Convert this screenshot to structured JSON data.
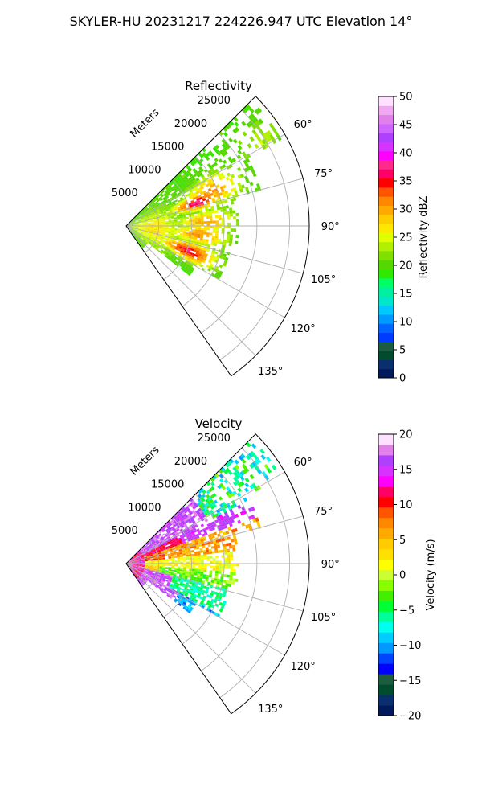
{
  "suptitle": "SKYLER-HU  20231217  224226.947 UTC Elevation 14°",
  "chart_data": [
    {
      "type": "heatmap",
      "projection": "polar-sector",
      "title": "Reflectivity",
      "radial_label": "Meters",
      "radial_ticks": [
        5000,
        10000,
        15000,
        20000,
        25000
      ],
      "rmax": 28000,
      "angle_range": [
        45,
        145
      ],
      "angle_ticks": [
        60,
        75,
        90,
        105,
        120,
        135
      ],
      "grid": true,
      "colorbar": {
        "label": "Reflectivity dBZ",
        "range": [
          0,
          50
        ],
        "ticks": [
          0,
          5,
          10,
          15,
          20,
          25,
          30,
          35,
          40,
          45,
          50
        ]
      },
      "blobs": [
        {
          "theta": 67,
          "r": 14000,
          "value": 31,
          "spread_deg": 6,
          "spread_r": 3000
        },
        {
          "theta": 71,
          "r": 11000,
          "value": 37,
          "spread_deg": 4,
          "spread_r": 2500
        },
        {
          "theta": 86,
          "r": 12000,
          "value": 30,
          "spread_deg": 5,
          "spread_r": 3000
        },
        {
          "theta": 96,
          "r": 11000,
          "value": 31,
          "spread_deg": 5,
          "spread_r": 3000
        },
        {
          "theta": 111,
          "r": 10000,
          "value": 36,
          "spread_deg": 5,
          "spread_r": 3000
        },
        {
          "theta": 57,
          "r": 24000,
          "value": 23,
          "spread_deg": 5,
          "spread_r": 3000
        },
        {
          "theta": 95,
          "r": 4000,
          "value": 27,
          "spread_deg": 25,
          "spread_r": 3000
        }
      ]
    },
    {
      "type": "heatmap",
      "projection": "polar-sector",
      "title": "Velocity",
      "radial_label": "Meters",
      "radial_ticks": [
        5000,
        10000,
        15000,
        20000,
        25000
      ],
      "rmax": 28000,
      "angle_range": [
        45,
        145
      ],
      "angle_ticks": [
        60,
        75,
        90,
        105,
        120,
        135
      ],
      "grid": true,
      "colorbar": {
        "label": "Velocity (m/s)",
        "range": [
          -20,
          20
        ],
        "ticks": [
          -20,
          -15,
          -10,
          -5,
          0,
          5,
          10,
          15,
          20
        ]
      },
      "zones": [
        {
          "from_deg": 45,
          "to_deg": 66,
          "value": 14,
          "note": "magenta/violet band upper"
        },
        {
          "from_deg": 66,
          "to_deg": 84,
          "value": 7,
          "note": "red/orange"
        },
        {
          "from_deg": 84,
          "to_deg": 97,
          "value": 0,
          "note": "yellow"
        },
        {
          "from_deg": 97,
          "to_deg": 145,
          "value": -8,
          "note": "green/cyan lower"
        }
      ]
    }
  ],
  "colors": {
    "reflectivity_scale": [
      "#001a5c",
      "#0a2f6e",
      "#004c2e",
      "#1c5c40",
      "#003cff",
      "#0066ff",
      "#0099ff",
      "#00c8ff",
      "#00e6c8",
      "#00f0a0",
      "#00ff66",
      "#30e800",
      "#55d800",
      "#80e000",
      "#b0f000",
      "#e0ff00",
      "#ffe800",
      "#ffcc00",
      "#ffaa00",
      "#ff8800",
      "#ff5500",
      "#ff0000",
      "#ff0066",
      "#ff2a8a",
      "#ff00ff",
      "#d633ff",
      "#b040ff",
      "#cc66ff",
      "#e080e8",
      "#f0a8f0",
      "#ffe0ff"
    ],
    "velocity_scale": [
      "#001a5c",
      "#0a2f6e",
      "#004c2e",
      "#1c5c40",
      "#0000ff",
      "#0044ff",
      "#0099ff",
      "#00ccff",
      "#00ffee",
      "#00ff99",
      "#00ff33",
      "#44ee00",
      "#88ff00",
      "#ccff33",
      "#ffff00",
      "#ffe000",
      "#ffcc00",
      "#ffaa00",
      "#ff8800",
      "#ff5500",
      "#ff0000",
      "#ff0066",
      "#ff00ff",
      "#d633ff",
      "#b040ff",
      "#e080e8",
      "#ffe0ff"
    ]
  }
}
